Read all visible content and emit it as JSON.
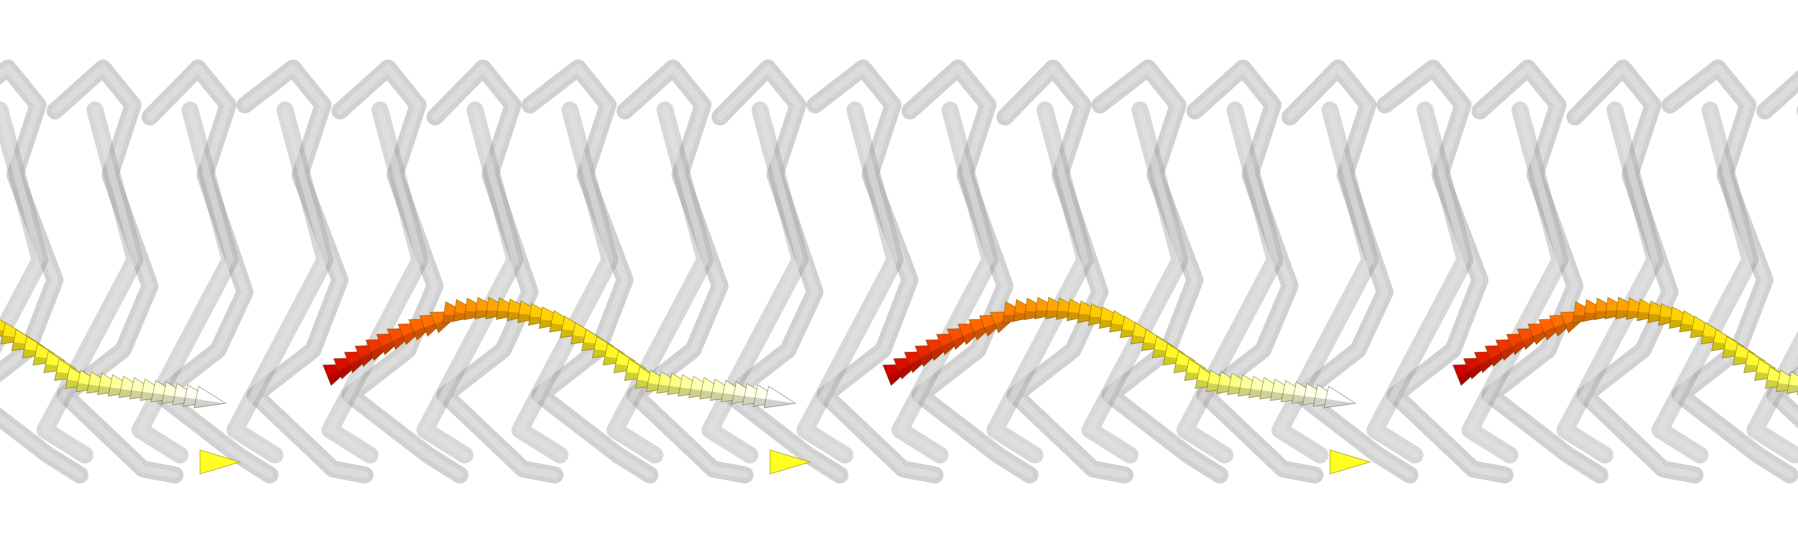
{
  "scene": {
    "background": "#ffffff",
    "structure_color": "#9a9a9a",
    "structure_highlight": "#e6e6e6",
    "arrow_gradient": [
      "#d40000",
      "#ff5a00",
      "#ff9a00",
      "#ffd800",
      "#ffff33",
      "#fbffb0",
      "#ffffff"
    ],
    "arrow_icon": "cone-arrow-icon",
    "strand_count": 20,
    "wave_count": 4
  }
}
